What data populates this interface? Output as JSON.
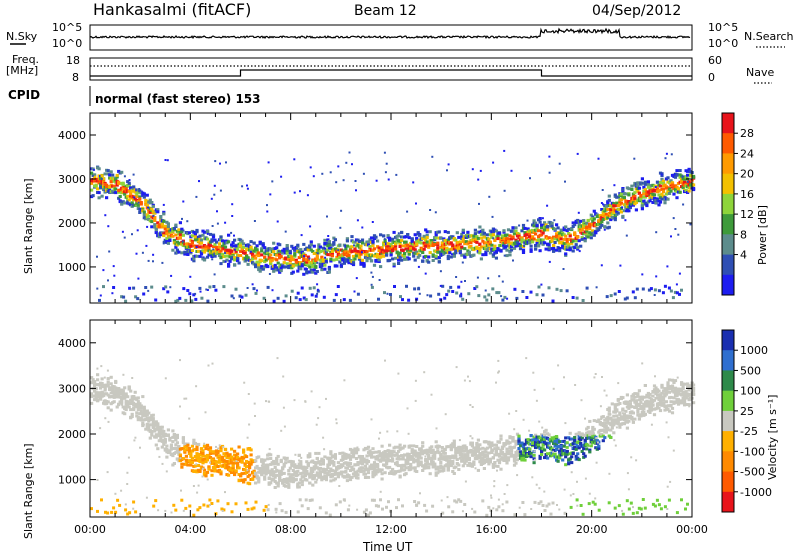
{
  "header": {
    "station": "Hankasalmi (fitACF)",
    "beam": "Beam 12",
    "date": "04/Sep/2012"
  },
  "top_panels": {
    "nsky_label": "N.Sky",
    "nsky_ticks": [
      "10^5",
      "10^0"
    ],
    "nsearch_label": "N.Search",
    "nsearch_ticks": [
      "10^5",
      "10^0"
    ],
    "freq_label_line1": "Freq.",
    "freq_label_line2": "[MHz]",
    "freq_ticks": [
      "18",
      "8"
    ],
    "nave_label": "Nave",
    "nave_ticks": [
      "60",
      "0"
    ],
    "cpid_label": "CPID",
    "cpid_value": "normal (fast stereo) 153"
  },
  "chart_data": [
    {
      "type": "heatmap",
      "panel": "power",
      "ylabel": "Slant Range [km]",
      "xlabel": "",
      "ylim": [
        180,
        4500
      ],
      "xlim": [
        0,
        24
      ],
      "yticks": [
        "4000",
        "3000",
        "2000",
        "1000"
      ],
      "colorbar_label": "Power [dB]",
      "colorbar_ticks": [
        "28",
        "24",
        "20",
        "16",
        "12",
        "8",
        "4"
      ],
      "colorbar_colors": [
        "#e8141b",
        "#ff5a00",
        "#ff9a00",
        "#f3c000",
        "#8ed43a",
        "#3e9a3a",
        "#5c8c8c",
        "#2f4fb4",
        "#1d1df0"
      ],
      "echo_trace_km": [
        [
          0,
          3000
        ],
        [
          1,
          2900
        ],
        [
          2,
          2500
        ],
        [
          3,
          1800
        ],
        [
          4,
          1550
        ],
        [
          5,
          1450
        ],
        [
          6,
          1350
        ],
        [
          7,
          1250
        ],
        [
          8,
          1200
        ],
        [
          9,
          1250
        ],
        [
          10,
          1350
        ],
        [
          11,
          1400
        ],
        [
          12,
          1450
        ],
        [
          13,
          1500
        ],
        [
          14,
          1500
        ],
        [
          15,
          1550
        ],
        [
          16,
          1600
        ],
        [
          17,
          1700
        ],
        [
          18,
          1800
        ],
        [
          19,
          1650
        ],
        [
          20,
          2000
        ],
        [
          21,
          2450
        ],
        [
          22,
          2700
        ],
        [
          23,
          2850
        ],
        [
          24,
          3000
        ]
      ]
    },
    {
      "type": "heatmap",
      "panel": "velocity",
      "ylabel": "Slant Range [km]",
      "xlabel": "Time UT",
      "ylim": [
        180,
        4500
      ],
      "xlim": [
        0,
        24
      ],
      "yticks": [
        "4000",
        "3000",
        "2000",
        "1000"
      ],
      "xticks": [
        "00:00",
        "04:00",
        "08:00",
        "12:00",
        "16:00",
        "20:00",
        "00:00"
      ],
      "colorbar_label": "Velocity [m s⁻¹]",
      "colorbar_ticks": [
        "1000",
        "500",
        "100",
        "25",
        "-25",
        "-100",
        "-500",
        "-1000"
      ],
      "colorbar_colors": [
        "#1a2fb0",
        "#2f6fcf",
        "#2e8a4a",
        "#6fcf3a",
        "#c8c8c0",
        "#ffb000",
        "#ff8a00",
        "#ff5a00",
        "#e8141b"
      ]
    }
  ]
}
